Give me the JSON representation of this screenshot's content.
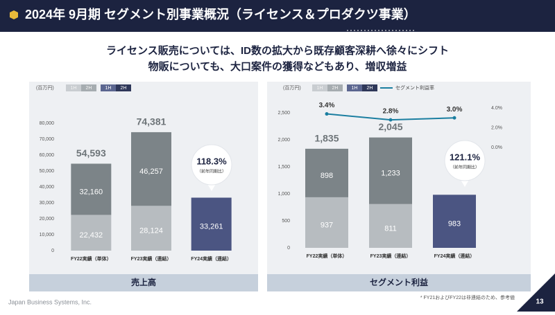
{
  "header": {
    "title": "2024年 9月期 セグメント別事業概況（ライセンス＆プロダクツ事業）",
    "page_number": "13"
  },
  "subtitle": [
    "ライセンス販売については、ID数の拡大から既存顧客深耕へ徐々にシフト",
    "物販についても、大口案件の獲得などもあり、増収増益"
  ],
  "footer": {
    "company": "Japan Business Systems, Inc.",
    "note": "* FY21およびFY22は非連結のため、参考値"
  },
  "chart_data": [
    {
      "type": "bar",
      "stacked": true,
      "title": "売上高",
      "unit": "(百万円)",
      "categories": [
        "FY22実績（単体）",
        "FY23実績（連結）",
        "FY24実績（連結）"
      ],
      "series": [
        {
          "name": "1H",
          "color": "#b7bcc0",
          "legend_color": "#c9cdd1",
          "values": [
            22432,
            28124,
            null
          ],
          "value_labels": [
            "22,432",
            "28,124",
            null
          ]
        },
        {
          "name": "2H",
          "color": "#7c8488",
          "legend_color": "#a6acb0",
          "values": [
            32160,
            46257,
            null
          ],
          "value_labels": [
            "32,160",
            "46,257",
            null
          ]
        },
        {
          "name": "1H",
          "color": "#4b5582",
          "legend_color": "#5b6690",
          "values": [
            null,
            null,
            33261
          ],
          "value_labels": [
            null,
            null,
            "33,261"
          ]
        },
        {
          "name": "2H",
          "color": "#2e3759",
          "legend_color": "#2e3759",
          "values": [
            null,
            null,
            null
          ]
        }
      ],
      "totals": [
        54593,
        74381,
        null
      ],
      "total_labels": [
        "54,593",
        "74,381",
        null
      ],
      "annotation": "118.3%",
      "annotation_note": "（前年同期比）",
      "ylim": [
        0,
        80000
      ],
      "yticks": [
        0,
        {
          "value": 10000,
          "label": "10,000"
        },
        {
          "value": 20000,
          "label": "20,000"
        },
        {
          "value": 30000,
          "label": "30,000"
        },
        {
          "value": 40000,
          "label": "40,000"
        },
        {
          "value": 50000,
          "label": "50,000"
        },
        {
          "value": 60000,
          "label": "60,000"
        },
        {
          "value": 70000,
          "label": "70,000"
        },
        {
          "value": 80000,
          "label": "80,000"
        }
      ]
    },
    {
      "type": "bar",
      "stacked": true,
      "title": "セグメント利益",
      "unit": "(百万円)",
      "categories": [
        "FY22実績（単体）",
        "FY23実績（連結）",
        "FY24実績（連結）"
      ],
      "series": [
        {
          "name": "1H",
          "color": "#b7bcc0",
          "legend_color": "#c9cdd1",
          "values": [
            937,
            811,
            null
          ]
        },
        {
          "name": "2H",
          "color": "#7c8488",
          "legend_color": "#a6acb0",
          "values": [
            898,
            1233,
            null
          ],
          "value_labels": [
            null,
            "1,233",
            null
          ]
        },
        {
          "name": "1H",
          "color": "#4b5582",
          "legend_color": "#5b6690",
          "values": [
            null,
            null,
            983
          ]
        },
        {
          "name": "2H",
          "color": "#2e3759",
          "legend_color": "#2e3759",
          "values": [
            null,
            null,
            null
          ]
        },
        {
          "name": "セグメント利益率",
          "type": "line",
          "axis": "y2",
          "color": "#1a7ea0",
          "values": [
            3.4,
            2.8,
            3.0
          ],
          "value_labels": [
            "3.4%",
            "2.8%",
            "3.0%"
          ]
        }
      ],
      "totals": [
        1835,
        2045,
        null
      ],
      "total_labels": [
        "1,835",
        "2,045",
        null
      ],
      "annotation": "121.1%",
      "annotation_note": "（前年同期比）",
      "ylim": [
        0,
        2500
      ],
      "yticks": [
        0,
        500,
        {
          "value": 1000,
          "label": "1,000"
        },
        {
          "value": 1500,
          "label": "1,500"
        },
        {
          "value": 2000,
          "label": "2,000"
        },
        {
          "value": 2500,
          "label": "2,500"
        }
      ],
      "y2lim": [
        0,
        4
      ],
      "y2ticks": [
        {
          "value": 0,
          "label": "0.0%"
        },
        {
          "value": 2,
          "label": "2.0%"
        },
        {
          "value": 4,
          "label": "4.0%"
        }
      ]
    }
  ]
}
